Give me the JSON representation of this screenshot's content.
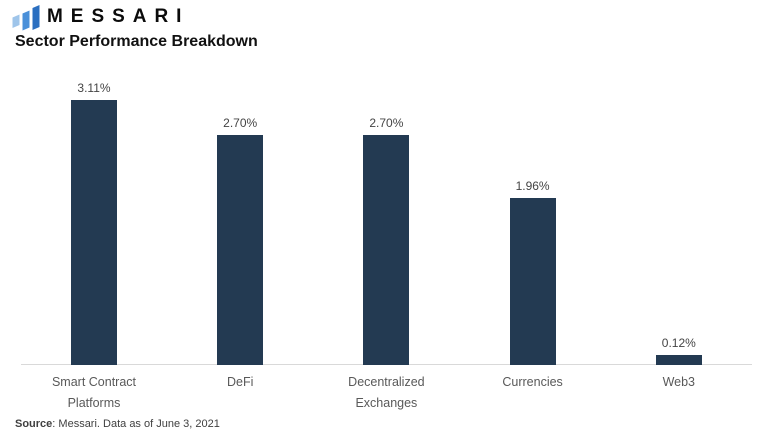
{
  "header": {
    "brand": "MESSARI",
    "logo_colors": {
      "light": "#9FC5EA",
      "mid": "#4A90D9",
      "dark": "#2B6FC0"
    }
  },
  "chart_data": {
    "type": "bar",
    "title": "Sector Performance Breakdown",
    "categories": [
      "Smart Contract Platforms",
      "DeFi",
      "Decentralized Exchanges",
      "Currencies",
      "Web3"
    ],
    "values": [
      3.11,
      2.7,
      2.7,
      1.96,
      0.12
    ],
    "value_labels": [
      "3.11%",
      "2.70%",
      "2.70%",
      "1.96%",
      "0.12%"
    ],
    "bar_color": "#233A52",
    "axis_line_color": "#D9D9D9",
    "xlabel": "",
    "ylabel": "",
    "ylim": [
      0,
      3.3
    ],
    "grid": false,
    "legend": false,
    "value_labels_position": "above-bars"
  },
  "footer": {
    "source_label": "Source",
    "source_rest": ": Messari. Data as of June 3, 2021"
  }
}
